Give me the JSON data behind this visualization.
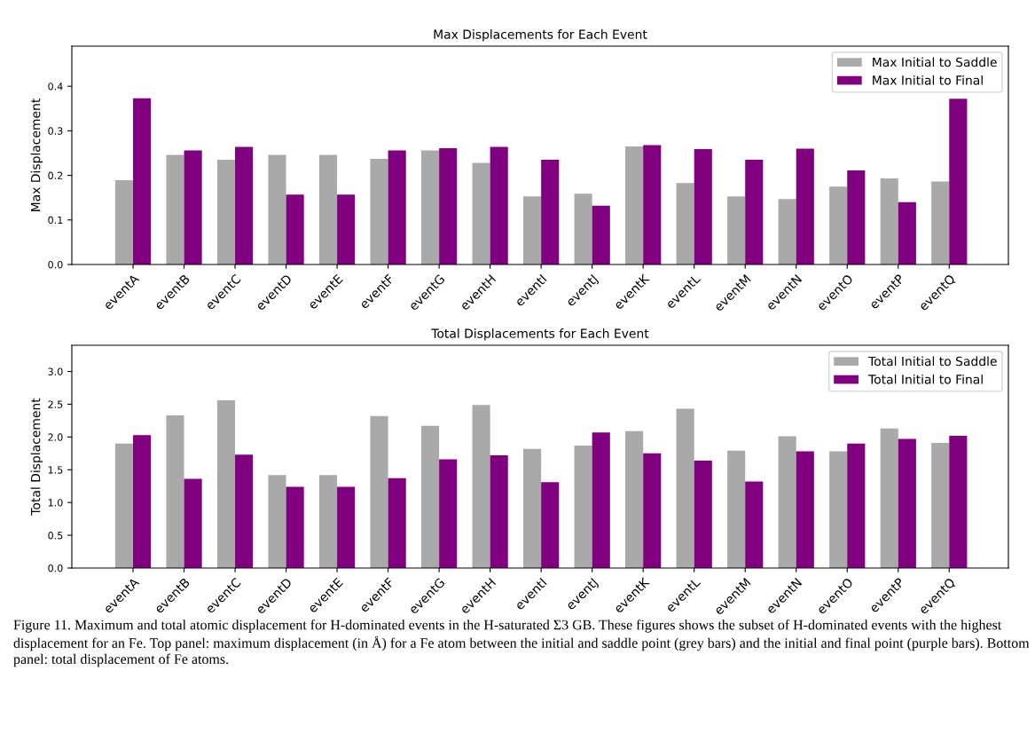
{
  "chart_data": [
    {
      "type": "bar",
      "title": "Max Displacements for Each Event",
      "ylabel": "Max Displacement",
      "categories": [
        "eventA",
        "eventB",
        "eventC",
        "eventD",
        "eventE",
        "eventF",
        "eventG",
        "eventH",
        "eventI",
        "eventJ",
        "eventK",
        "eventL",
        "eventM",
        "eventN",
        "eventO",
        "eventP",
        "eventQ"
      ],
      "series": [
        {
          "name": "Max Initial to Saddle",
          "color": "#a9a9a9",
          "values": [
            0.189,
            0.246,
            0.235,
            0.246,
            0.246,
            0.237,
            0.256,
            0.228,
            0.153,
            0.159,
            0.265,
            0.183,
            0.153,
            0.147,
            0.175,
            0.193,
            0.186
          ]
        },
        {
          "name": "Max Initial to Final",
          "color": "#800080",
          "values": [
            0.373,
            0.256,
            0.264,
            0.157,
            0.157,
            0.256,
            0.261,
            0.264,
            0.235,
            0.132,
            0.268,
            0.259,
            0.235,
            0.26,
            0.211,
            0.14,
            0.372
          ]
        }
      ],
      "ylim": [
        0,
        0.49
      ],
      "yticks": [
        {
          "value": 0,
          "label": "0.0"
        },
        0.1,
        0.2,
        0.3,
        0.4
      ],
      "legend": "top right",
      "grid": false
    },
    {
      "type": "bar",
      "title": "Total Displacements for Each Event",
      "ylabel": "Total Displacement",
      "categories": [
        "eventA",
        "eventB",
        "eventC",
        "eventD",
        "eventE",
        "eventF",
        "eventG",
        "eventH",
        "eventI",
        "eventJ",
        "eventK",
        "eventL",
        "eventM",
        "eventN",
        "eventO",
        "eventP",
        "eventQ"
      ],
      "series": [
        {
          "name": "Total Initial to Saddle",
          "color": "#a9a9a9",
          "values": [
            1.9,
            2.33,
            2.56,
            1.42,
            1.42,
            2.32,
            2.17,
            2.49,
            1.82,
            1.87,
            2.09,
            2.43,
            1.79,
            2.01,
            1.78,
            2.13,
            1.91
          ]
        },
        {
          "name": "Total Initial to Final",
          "color": "#800080",
          "values": [
            2.03,
            1.36,
            1.73,
            1.24,
            1.24,
            1.37,
            1.66,
            1.72,
            1.31,
            2.07,
            1.75,
            1.64,
            1.32,
            1.78,
            1.9,
            1.97,
            2.02
          ]
        }
      ],
      "ylim": [
        0,
        3.4
      ],
      "yticks": [
        {
          "value": 0,
          "label": "0.0"
        },
        0.5,
        {
          "value": 1,
          "label": "1.0"
        },
        1.5,
        {
          "value": 2,
          "label": "2.0"
        },
        2.5,
        {
          "value": 3,
          "label": "3.0"
        }
      ],
      "legend": "top right",
      "grid": false,
      "annotations": [
        "Figure 11. Maximum and total atomic displacement for H-dominated events in the H-saturated Σ3 GB. These figures shows the subset of H-dominated events with the highest displacement for an Fe. Top panel: maximum displacement (in Å) for a Fe atom between the initial and saddle point (grey bars) and the initial and final point (purple bars). Bottom panel: total displacement of Fe atoms."
      ]
    }
  ]
}
